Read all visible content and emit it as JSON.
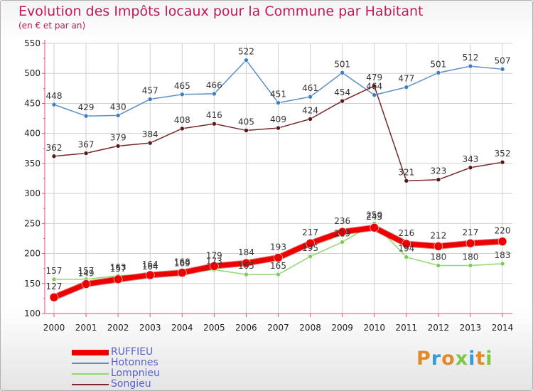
{
  "title": "Evolution des Impôts locaux pour la Commune par Habitant",
  "subtitle": "(en € et par an)",
  "logo_text": "Proxiti",
  "colors": {
    "title": "#c2185b",
    "axis": "#e05080",
    "grid": "#d0d0d0",
    "legend_text": "#5a5fd0"
  },
  "chart_data": {
    "type": "line",
    "title": "Evolution des Impôts locaux pour la Commune par Habitant",
    "subtitle": "(en € et par an)",
    "xlabel": "",
    "ylabel": "",
    "x": [
      "2000",
      "2001",
      "2002",
      "2003",
      "2004",
      "2005",
      "2006",
      "2007",
      "2008",
      "2009",
      "2010",
      "2011",
      "2012",
      "2013",
      "2014"
    ],
    "ylim": [
      100,
      550
    ],
    "yticks": [
      100,
      150,
      200,
      250,
      300,
      350,
      400,
      450,
      500,
      550
    ],
    "grid": true,
    "legend_position": "bottom-left",
    "series": [
      {
        "name": "Hotonnes",
        "color": "#5b8fc9",
        "marker": "#3b7fc4",
        "line_width": 1.5,
        "label_position": "above",
        "values": [
          448,
          429,
          430,
          457,
          465,
          466,
          522,
          451,
          461,
          501,
          464,
          477,
          501,
          512,
          507
        ],
        "labels": [
          "448",
          "429",
          "430",
          "457",
          "465",
          "466",
          "522",
          "451",
          "461",
          "501",
          "464",
          "477",
          "501",
          "512",
          "507"
        ]
      },
      {
        "name": "Songieu",
        "color": "#7a2828",
        "marker": "#5a1818",
        "line_width": 1.5,
        "label_position": "above",
        "values": [
          362,
          367,
          379,
          384,
          408,
          416,
          405,
          409,
          424,
          454,
          479,
          321,
          323,
          343,
          352
        ],
        "labels": [
          "362",
          "367",
          "379",
          "384",
          "408",
          "416",
          "405",
          "409",
          "424",
          "454",
          "479",
          "321",
          "323",
          "343",
          "352"
        ]
      },
      {
        "name": "Lompnieu",
        "color": "#8fd86a",
        "marker": "#7ccc58",
        "line_width": 1.5,
        "label_position": "above",
        "values": [
          157,
          157,
          163,
          164,
          169,
          173,
          165,
          165,
          195,
          219,
          250,
          194,
          180,
          180,
          183
        ],
        "labels": [
          "157",
          "157",
          "163",
          "164",
          "169",
          "173",
          "165",
          "165",
          "195",
          "219",
          "250",
          "194",
          "180",
          "180",
          "183"
        ]
      },
      {
        "name": "RUFFIEU",
        "color": "#ee0000",
        "marker": "#ee0000",
        "line_width": 7,
        "label_position": "above",
        "values": [
          127,
          149,
          157,
          164,
          168,
          179,
          184,
          193,
          217,
          236,
          243,
          216,
          212,
          217,
          220
        ],
        "labels": [
          "127",
          "149",
          "157",
          "164",
          "168",
          "179",
          "184",
          "193",
          "217",
          "236",
          "243",
          "216",
          "212",
          "217",
          "220"
        ]
      }
    ],
    "legend": [
      {
        "name": "RUFFIEU",
        "color": "#ee0000",
        "thickness": 8
      },
      {
        "name": "Hotonnes",
        "color": "#5b8fc9",
        "thickness": 2
      },
      {
        "name": "Lompnieu",
        "color": "#8fd86a",
        "thickness": 2
      },
      {
        "name": "Songieu",
        "color": "#7a2828",
        "thickness": 2
      }
    ]
  }
}
